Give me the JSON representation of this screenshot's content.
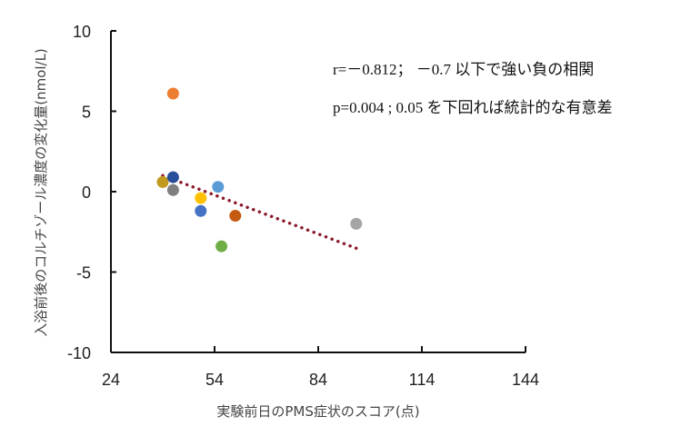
{
  "chart_data": {
    "type": "scatter",
    "title": "",
    "xlabel": "実験前日のPMS症状のスコア(点)",
    "ylabel": "入浴前後のコルチゾール濃度の変化量(nmol/L)",
    "xlim": [
      24,
      144
    ],
    "ylim": [
      -10,
      10
    ],
    "xticks": [
      24,
      54,
      84,
      114,
      144
    ],
    "yticks": [
      10,
      5,
      0,
      -5,
      -10
    ],
    "grid": false,
    "legend": "none",
    "points": [
      {
        "x": 39,
        "y": 0.6,
        "color": "#c09a1c"
      },
      {
        "x": 42,
        "y": 0.9,
        "color": "#2a4f9a"
      },
      {
        "x": 42,
        "y": 0.1,
        "color": "#7f7f7f"
      },
      {
        "x": 42,
        "y": 6.1,
        "color": "#ed7d31"
      },
      {
        "x": 50,
        "y": -0.4,
        "color": "#ffc000"
      },
      {
        "x": 50,
        "y": -1.2,
        "color": "#4472c4"
      },
      {
        "x": 55,
        "y": 0.3,
        "color": "#5b9bd5"
      },
      {
        "x": 56,
        "y": -3.4,
        "color": "#70ad47"
      },
      {
        "x": 60,
        "y": -1.5,
        "color": "#c55a11"
      },
      {
        "x": 95,
        "y": -2.0,
        "color": "#a5a5a5"
      }
    ],
    "trendline": {
      "type": "linear",
      "style": "dotted",
      "color": "#8b1a2b",
      "x_start": 39,
      "y_start": 1.0,
      "x_end": 96,
      "y_end": -3.6
    },
    "annotations": [
      "r=－0.812； －0.7 以下で強い負の相関",
      "p=0.004 ; 0.05 を下回れば統計的な有意差"
    ]
  },
  "annotations": {
    "line1": "r=－0.812； －0.7 以下で強い負の相関",
    "line2": "p=0.004 ; 0.05 を下回れば統計的な有意差"
  }
}
